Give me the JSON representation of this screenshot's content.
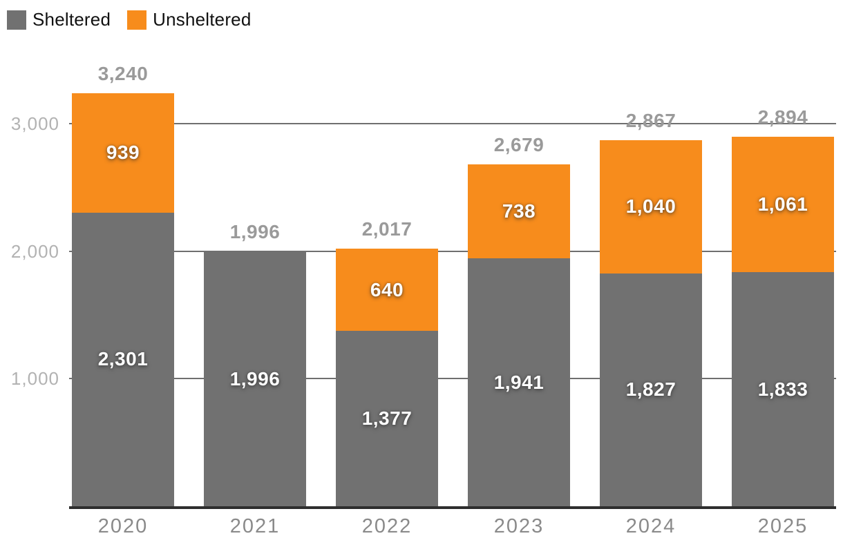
{
  "chart_data": {
    "type": "bar",
    "stacked": true,
    "title": "",
    "xlabel": "",
    "ylabel": "",
    "categories": [
      "2020",
      "2021",
      "2022",
      "2023",
      "2024",
      "2025"
    ],
    "series": [
      {
        "name": "Sheltered",
        "color": "#717171",
        "values": [
          2301,
          1996,
          1377,
          1941,
          1827,
          1833
        ]
      },
      {
        "name": "Unsheltered",
        "color": "#F78C1C",
        "values": [
          939,
          null,
          640,
          738,
          1040,
          1061
        ]
      }
    ],
    "totals": [
      3240,
      1996,
      2017,
      2679,
      2867,
      2894
    ],
    "y_ticks": [
      1000,
      2000,
      3000
    ],
    "ylim": [
      0,
      3300
    ],
    "grid": true,
    "legend_position": "top-left",
    "colors": {
      "segment_value_label": "#FFFFFF",
      "total_label": "#9A9A9A",
      "y_tick_label": "#B2B2B2",
      "category_label": "#8A8A8A",
      "gridline": "#6F6F6F",
      "axis_line": "#2E2E2E",
      "legend_text": "#111111"
    }
  }
}
